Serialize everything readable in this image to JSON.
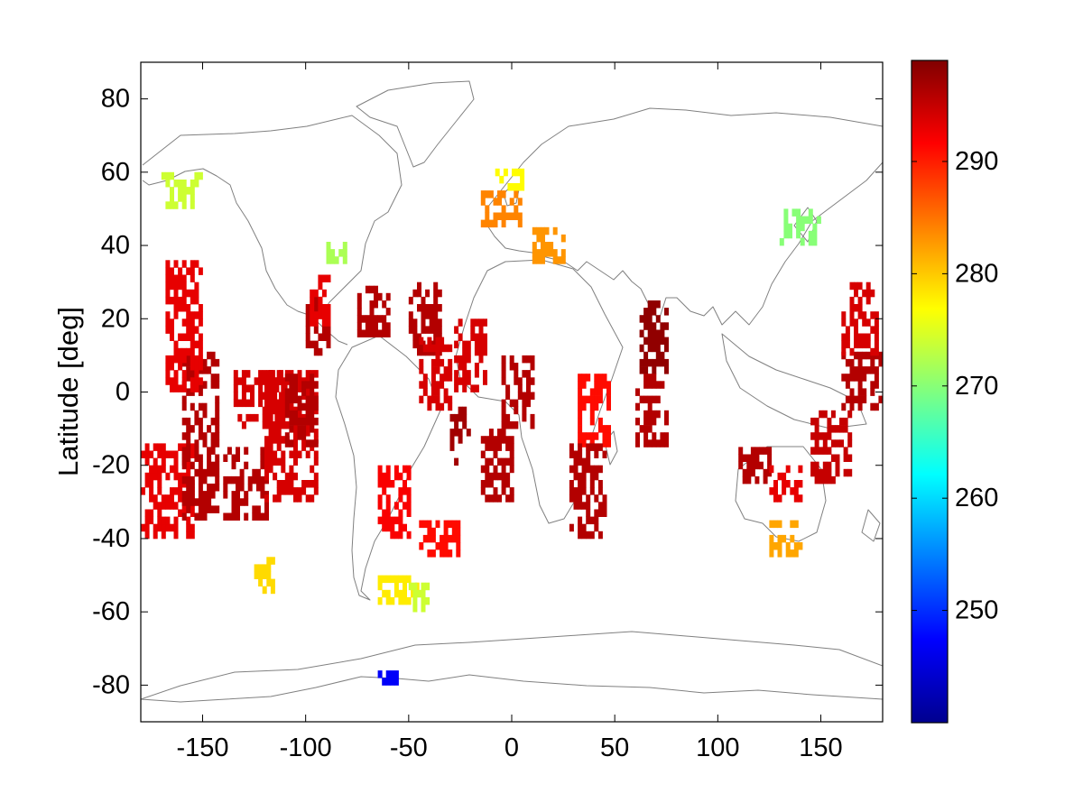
{
  "chart_data": {
    "type": "heatmap",
    "title": "",
    "xlabel": "",
    "ylabel": "Latitude [deg]",
    "xlim": [
      -180,
      180
    ],
    "ylim": [
      -90,
      90
    ],
    "x_ticks": [
      "-150",
      "-100",
      "-50",
      "0",
      "50",
      "100",
      "150"
    ],
    "y_ticks": [
      "80",
      "60",
      "40",
      "20",
      "0",
      "-20",
      "-40",
      "-60",
      "-80"
    ],
    "colorbar": {
      "colormap": "jet",
      "range": [
        240,
        299
      ],
      "ticks": [
        "250",
        "260",
        "270",
        "280",
        "290"
      ]
    },
    "grid": false,
    "basemap": "world coastlines",
    "regions": [
      {
        "lon": [
          -180,
          -155
        ],
        "lat": [
          -40,
          -15
        ],
        "value": 293
      },
      {
        "lon": [
          -160,
          -143
        ],
        "lat": [
          -35,
          10
        ],
        "value": 296
      },
      {
        "lon": [
          -168,
          -150
        ],
        "lat": [
          0,
          35
        ],
        "value": 293
      },
      {
        "lon": [
          -140,
          -118
        ],
        "lat": [
          -35,
          -15
        ],
        "value": 296
      },
      {
        "lon": [
          -135,
          -110
        ],
        "lat": [
          -10,
          5
        ],
        "value": 294
      },
      {
        "lon": [
          -120,
          -95
        ],
        "lat": [
          -30,
          5
        ],
        "value": 294
      },
      {
        "lon": [
          -110,
          -95
        ],
        "lat": [
          -15,
          5
        ],
        "value": 296
      },
      {
        "lon": [
          -100,
          -88
        ],
        "lat": [
          10,
          25
        ],
        "value": 296
      },
      {
        "lon": [
          -98,
          -88
        ],
        "lat": [
          18,
          32
        ],
        "value": 293
      },
      {
        "lon": [
          -75,
          -60
        ],
        "lat": [
          15,
          28
        ],
        "value": 296
      },
      {
        "lon": [
          -50,
          -35
        ],
        "lat": [
          10,
          30
        ],
        "value": 296
      },
      {
        "lon": [
          -45,
          -30
        ],
        "lat": [
          -5,
          15
        ],
        "value": 294
      },
      {
        "lon": [
          -30,
          -20
        ],
        "lat": [
          -20,
          -5
        ],
        "value": 297
      },
      {
        "lon": [
          -28,
          -12
        ],
        "lat": [
          0,
          20
        ],
        "value": 294
      },
      {
        "lon": [
          -15,
          0
        ],
        "lat": [
          -30,
          -10
        ],
        "value": 296
      },
      {
        "lon": [
          -5,
          10
        ],
        "lat": [
          -10,
          10
        ],
        "value": 296
      },
      {
        "lon": [
          -65,
          -50
        ],
        "lat": [
          -40,
          -20
        ],
        "value": 292
      },
      {
        "lon": [
          -45,
          -25
        ],
        "lat": [
          -45,
          -35
        ],
        "value": 291
      },
      {
        "lon": [
          32,
          48
        ],
        "lat": [
          -15,
          5
        ],
        "value": 291
      },
      {
        "lon": [
          28,
          45
        ],
        "lat": [
          -40,
          -15
        ],
        "value": 296
      },
      {
        "lon": [
          62,
          75
        ],
        "lat": [
          5,
          25
        ],
        "value": 298
      },
      {
        "lon": [
          60,
          75
        ],
        "lat": [
          -15,
          5
        ],
        "value": 296
      },
      {
        "lon": [
          110,
          125
        ],
        "lat": [
          -25,
          -15
        ],
        "value": 296
      },
      {
        "lon": [
          125,
          140
        ],
        "lat": [
          -30,
          -20
        ],
        "value": 293
      },
      {
        "lon": [
          160,
          180
        ],
        "lat": [
          -5,
          10
        ],
        "value": 296
      },
      {
        "lon": [
          160,
          178
        ],
        "lat": [
          10,
          30
        ],
        "value": 294
      },
      {
        "lon": [
          145,
          165
        ],
        "lat": [
          -25,
          -5
        ],
        "value": 295
      },
      {
        "lon": [
          -65,
          -45
        ],
        "lat": [
          -58,
          -50
        ],
        "value": 278
      },
      {
        "lon": [
          -50,
          -40
        ],
        "lat": [
          -60,
          -52
        ],
        "value": 274
      },
      {
        "lon": [
          -170,
          -150
        ],
        "lat": [
          50,
          60
        ],
        "value": 274
      },
      {
        "lon": [
          -90,
          -80
        ],
        "lat": [
          35,
          40
        ],
        "value": 272
      },
      {
        "lon": [
          -15,
          5
        ],
        "lat": [
          45,
          55
        ],
        "value": 284
      },
      {
        "lon": [
          -8,
          5
        ],
        "lat": [
          55,
          60
        ],
        "value": 277
      },
      {
        "lon": [
          10,
          25
        ],
        "lat": [
          35,
          45
        ],
        "value": 283
      },
      {
        "lon": [
          130,
          150
        ],
        "lat": [
          40,
          50
        ],
        "value": 270
      },
      {
        "lon": [
          125,
          140
        ],
        "lat": [
          -45,
          -35
        ],
        "value": 282
      },
      {
        "lon": [
          -125,
          -115
        ],
        "lat": [
          -55,
          -45
        ],
        "value": 279
      },
      {
        "lon": [
          -65,
          -55
        ],
        "lat": [
          -80,
          -76
        ],
        "value": 247
      }
    ]
  }
}
